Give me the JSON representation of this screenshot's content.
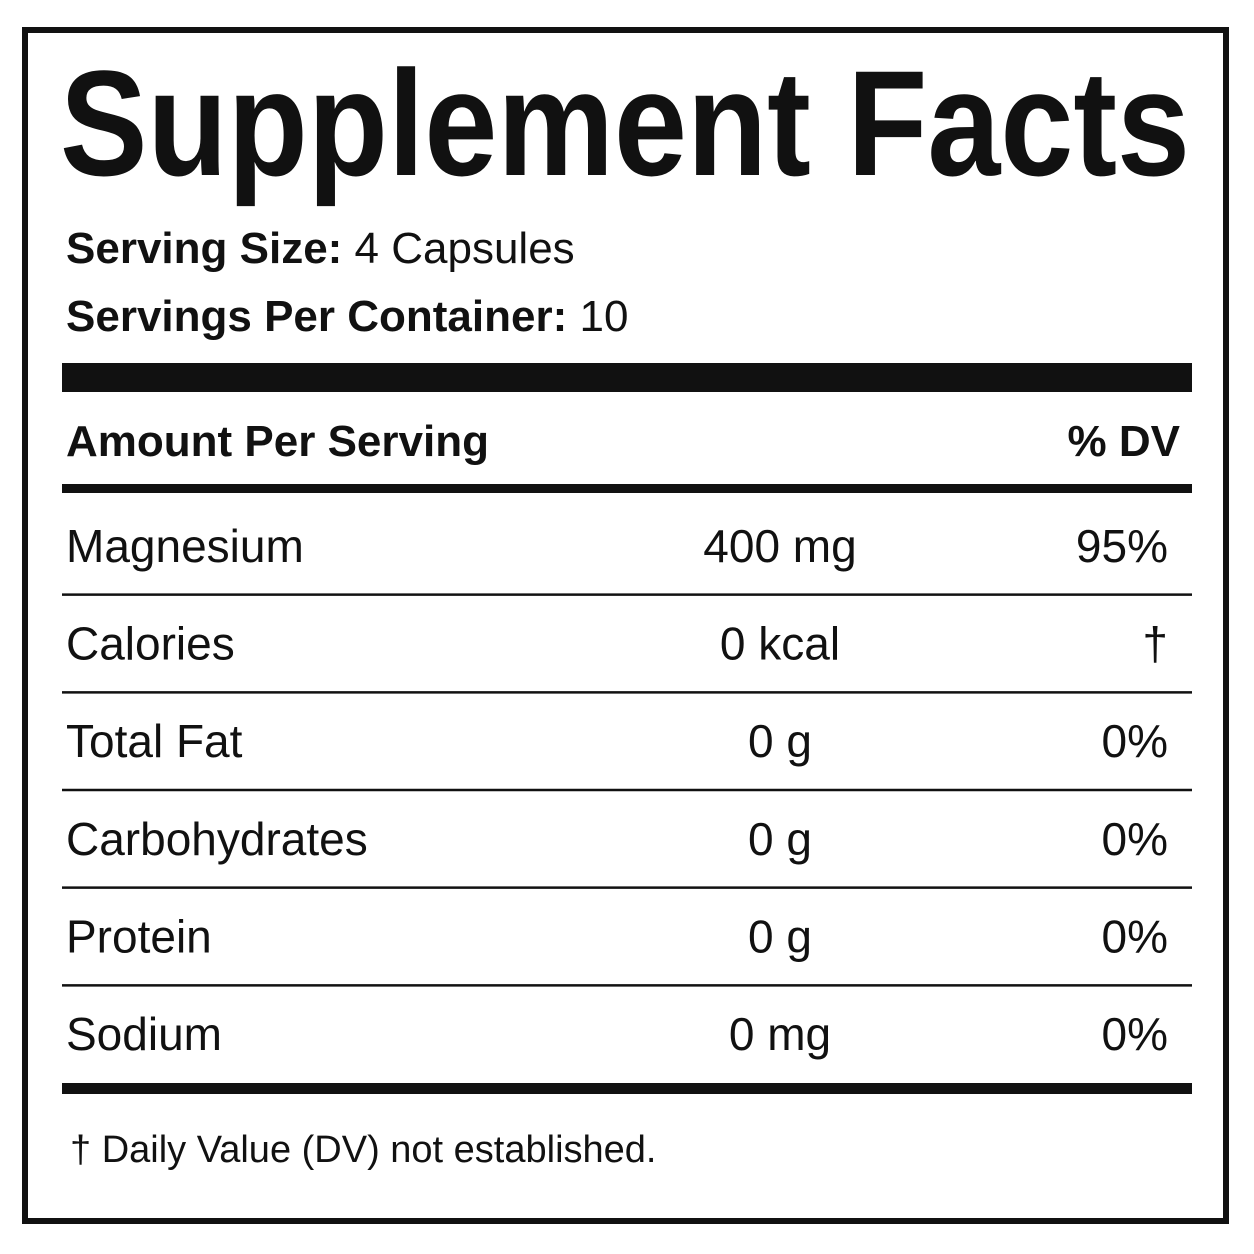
{
  "header": {
    "title": "Supplement Facts"
  },
  "serving": [
    {
      "label": "Serving Size:",
      "value": "4 Capsules"
    },
    {
      "label": "Servings Per Container:",
      "value": "10"
    }
  ],
  "table": {
    "header": [
      "Amount Per Serving",
      "% DV"
    ],
    "rows": [
      [
        "Magnesium",
        "400 mg",
        "95%"
      ],
      [
        "Calories",
        "0 kcal",
        "†"
      ],
      [
        "Total Fat",
        "0 g",
        "0%"
      ],
      [
        "Carbohydrates",
        "0 g",
        "0%"
      ],
      [
        "Protein",
        "0 g",
        "0%"
      ],
      [
        "Sodium",
        "0 mg",
        "0%"
      ]
    ]
  },
  "footnote": "† Daily Value (DV) not established."
}
